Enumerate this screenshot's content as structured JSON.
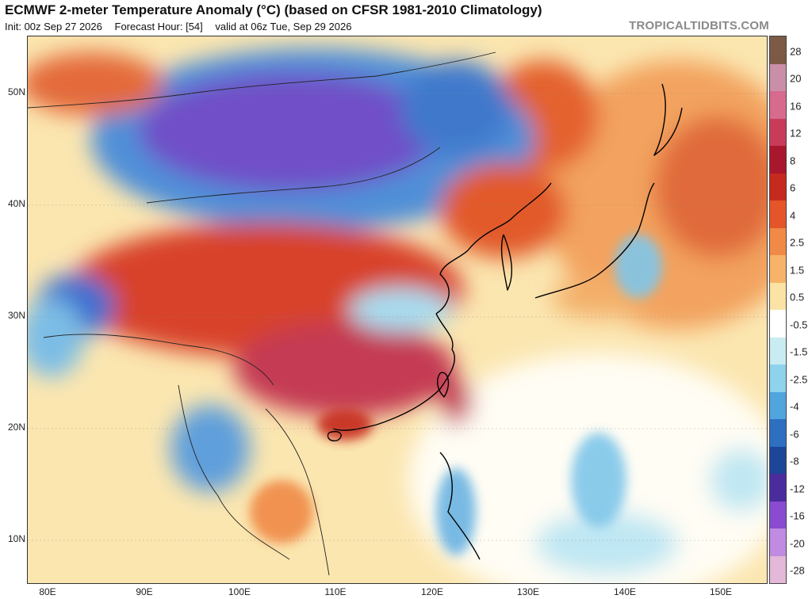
{
  "header": {
    "title": "ECMWF 2-meter Temperature Anomaly (°C) (based on CFSR 1981-2010 Climatology)",
    "init": "Init: 00z Sep 27 2026",
    "forecast_hour": "Forecast Hour: [54]",
    "valid": "valid at 06z Tue, Sep 29 2026",
    "brand": "TROPICALTIDBITS.COM"
  },
  "axes": {
    "lat_labels": [
      "50N",
      "40N",
      "30N",
      "20N",
      "10N"
    ],
    "lon_labels": [
      "80E",
      "90E",
      "100E",
      "110E",
      "120E",
      "130E",
      "140E",
      "150E"
    ]
  },
  "colorbar": {
    "labels": [
      "28",
      "20",
      "16",
      "12",
      "8",
      "6",
      "4",
      "2.5",
      "1.5",
      "0.5",
      "-0.5",
      "-1.5",
      "-2.5",
      "-4",
      "-6",
      "-8",
      "-12",
      "-16",
      "-20",
      "-28"
    ],
    "colors": [
      "#7d5a45",
      "#c98fa8",
      "#d66b8e",
      "#c83c5a",
      "#a8172c",
      "#c62a1e",
      "#e4552a",
      "#f08a46",
      "#f7b36a",
      "#fbe2a5",
      "#ffffff",
      "#c8ecf2",
      "#8ed3ec",
      "#4fa5dc",
      "#2e6fc0",
      "#1d4698",
      "#4b2c9c",
      "#8a4bd0",
      "#c08be0",
      "#e3b8d8"
    ]
  }
}
